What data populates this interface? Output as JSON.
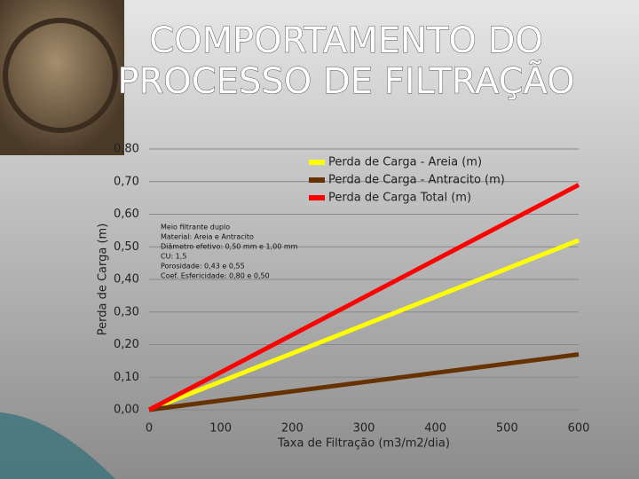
{
  "chart_data": {
    "type": "line",
    "title": [
      "COMPORTAMENTO DO",
      "PROCESSO DE FILTRAÇÃO"
    ],
    "x_label": "Taxa de Filtração (m3/m2/dia)",
    "y_label": "Perda de Carga (m)",
    "x": [
      0,
      600
    ],
    "series": [
      {
        "name": "Perda de Carga - Areia (m)",
        "color": "#ffff00",
        "values": [
          0,
          0.52
        ]
      },
      {
        "name": "Perda de Carga - Antracito (m)",
        "color": "#663300",
        "values": [
          0,
          0.17
        ]
      },
      {
        "name": "Perda de Carga Total (m)",
        "color": "#ff0000",
        "values": [
          0,
          0.69
        ]
      }
    ],
    "annotations": [
      "Meio filtrante duplo",
      "Material: Areia e Antracito",
      "Diâmetro efetivo: 0,50 mm e 1,00 mm",
      "CU: 1,5",
      "Porosidade: 0,43 e 0,55",
      "Coef. Esfericidade: 0,80 e 0,50"
    ],
    "xlim": [
      0,
      600
    ],
    "xticks": [
      0,
      100,
      200,
      300,
      400,
      500,
      600
    ],
    "ylim": [
      0,
      0.8
    ],
    "yticks": [
      {
        "value": 0,
        "label": "0,00"
      },
      {
        "value": 0.1,
        "label": "0,10"
      },
      {
        "value": 0.2,
        "label": "0,20"
      },
      {
        "value": 0.3,
        "label": "0,30"
      },
      {
        "value": 0.4,
        "label": "0,40"
      },
      {
        "value": 0.5,
        "label": "0,50"
      },
      {
        "value": 0.6,
        "label": "0,60"
      },
      {
        "value": 0.7,
        "label": "0,70"
      },
      {
        "value": 0.8,
        "label": "0,80"
      }
    ],
    "grid": true,
    "legend": "top-right"
  }
}
